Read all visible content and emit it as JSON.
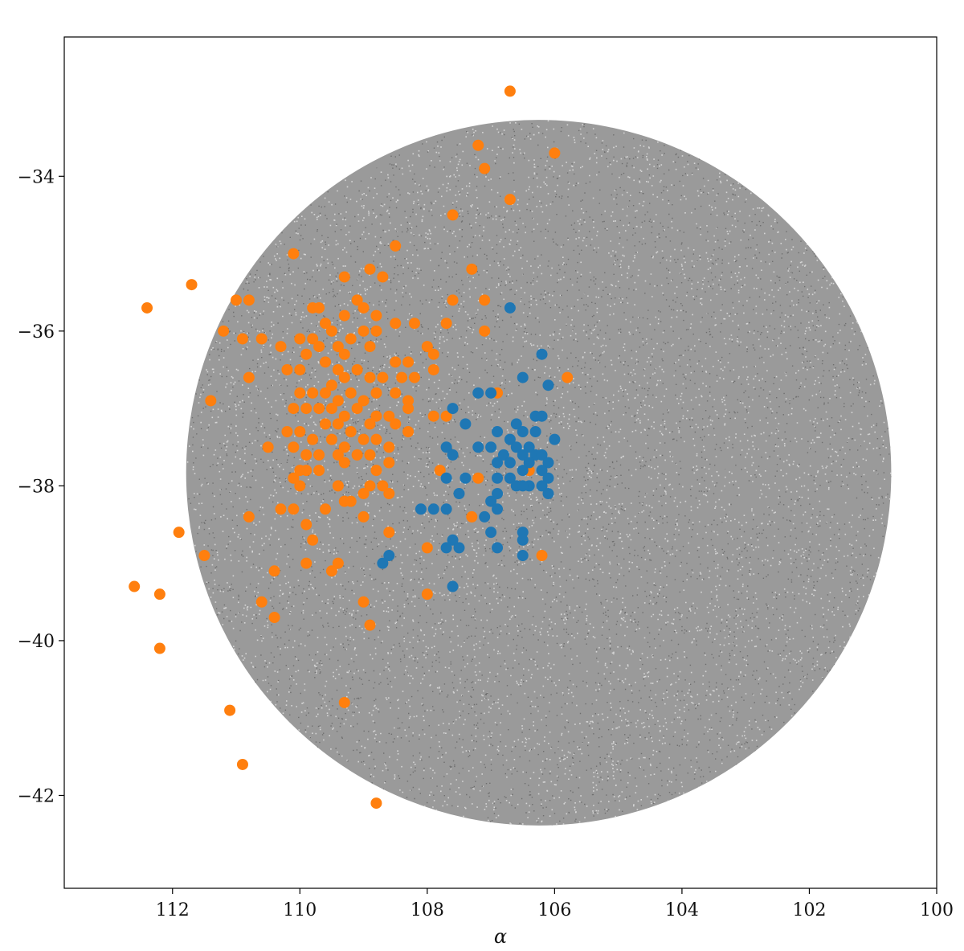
{
  "chart_data": {
    "type": "scatter",
    "title": "",
    "xlabel": "α",
    "ylabel": "",
    "xlim": [
      113.7,
      100.0
    ],
    "ylim": [
      -43.2,
      -32.2
    ],
    "x_inverted": true,
    "xticks": [
      112,
      110,
      108,
      106,
      104,
      102,
      100
    ],
    "yticks": [
      -34,
      -36,
      -38,
      -40,
      -42
    ],
    "xtick_labels": [
      "112",
      "110",
      "108",
      "106",
      "104",
      "102",
      "100"
    ],
    "ytick_labels": [
      "−34",
      "−36",
      "−38",
      "−40",
      "−42"
    ],
    "grid": false,
    "legend": "none",
    "colors": {
      "background_field": "#808080",
      "group_a": "#ff7f0e",
      "group_b": "#1f77b4"
    },
    "background_field": {
      "shape": "circular field of dense faint points",
      "center": [
        106.25,
        -37.83
      ],
      "radius_deg": 5.0
    },
    "series": [
      {
        "name": "",
        "color": "#ff7f0e",
        "points": [
          [
            106.7,
            -32.9
          ],
          [
            107.2,
            -33.6
          ],
          [
            106.0,
            -33.7
          ],
          [
            107.1,
            -33.9
          ],
          [
            106.7,
            -34.3
          ],
          [
            107.6,
            -34.5
          ],
          [
            108.5,
            -34.9
          ],
          [
            110.1,
            -35.0
          ],
          [
            107.3,
            -35.2
          ],
          [
            109.3,
            -35.3
          ],
          [
            108.9,
            -35.2
          ],
          [
            108.7,
            -35.3
          ],
          [
            111.7,
            -35.4
          ],
          [
            112.4,
            -35.7
          ],
          [
            111.0,
            -35.6
          ],
          [
            110.8,
            -35.6
          ],
          [
            107.6,
            -35.6
          ],
          [
            107.1,
            -35.6
          ],
          [
            109.8,
            -35.7
          ],
          [
            109.7,
            -35.7
          ],
          [
            109.1,
            -35.6
          ],
          [
            109.0,
            -35.7
          ],
          [
            108.8,
            -35.8
          ],
          [
            108.5,
            -35.9
          ],
          [
            108.2,
            -35.9
          ],
          [
            107.7,
            -35.9
          ],
          [
            109.6,
            -35.9
          ],
          [
            109.3,
            -35.8
          ],
          [
            111.2,
            -36.0
          ],
          [
            110.9,
            -36.1
          ],
          [
            110.6,
            -36.1
          ],
          [
            110.0,
            -36.1
          ],
          [
            109.8,
            -36.1
          ],
          [
            109.5,
            -36.0
          ],
          [
            109.2,
            -36.1
          ],
          [
            109.0,
            -36.0
          ],
          [
            108.8,
            -36.0
          ],
          [
            110.3,
            -36.2
          ],
          [
            109.7,
            -36.2
          ],
          [
            109.4,
            -36.2
          ],
          [
            109.3,
            -36.3
          ],
          [
            108.9,
            -36.2
          ],
          [
            108.0,
            -36.2
          ],
          [
            107.9,
            -36.3
          ],
          [
            107.1,
            -36.0
          ],
          [
            109.9,
            -36.3
          ],
          [
            109.6,
            -36.4
          ],
          [
            108.5,
            -36.4
          ],
          [
            108.3,
            -36.4
          ],
          [
            110.2,
            -36.5
          ],
          [
            110.0,
            -36.5
          ],
          [
            109.4,
            -36.5
          ],
          [
            109.1,
            -36.5
          ],
          [
            108.9,
            -36.6
          ],
          [
            108.7,
            -36.6
          ],
          [
            108.4,
            -36.6
          ],
          [
            108.2,
            -36.6
          ],
          [
            107.9,
            -36.5
          ],
          [
            110.8,
            -36.6
          ],
          [
            109.5,
            -36.7
          ],
          [
            109.3,
            -36.6
          ],
          [
            105.8,
            -36.6
          ],
          [
            110.0,
            -36.8
          ],
          [
            109.8,
            -36.8
          ],
          [
            109.6,
            -36.8
          ],
          [
            109.4,
            -36.9
          ],
          [
            109.2,
            -36.8
          ],
          [
            109.0,
            -36.9
          ],
          [
            108.8,
            -36.8
          ],
          [
            108.5,
            -36.8
          ],
          [
            108.3,
            -36.9
          ],
          [
            106.9,
            -36.8
          ],
          [
            111.4,
            -36.9
          ],
          [
            110.1,
            -37.0
          ],
          [
            109.9,
            -37.0
          ],
          [
            109.7,
            -37.0
          ],
          [
            109.5,
            -37.0
          ],
          [
            109.3,
            -37.1
          ],
          [
            109.1,
            -37.0
          ],
          [
            108.8,
            -37.1
          ],
          [
            108.6,
            -37.1
          ],
          [
            108.3,
            -37.0
          ],
          [
            107.9,
            -37.1
          ],
          [
            107.7,
            -37.1
          ],
          [
            109.6,
            -37.2
          ],
          [
            109.4,
            -37.2
          ],
          [
            109.2,
            -37.3
          ],
          [
            108.9,
            -37.2
          ],
          [
            108.5,
            -37.2
          ],
          [
            108.3,
            -37.3
          ],
          [
            110.2,
            -37.3
          ],
          [
            110.0,
            -37.3
          ],
          [
            109.8,
            -37.4
          ],
          [
            109.5,
            -37.4
          ],
          [
            109.3,
            -37.5
          ],
          [
            109.0,
            -37.4
          ],
          [
            108.8,
            -37.4
          ],
          [
            108.6,
            -37.5
          ],
          [
            110.5,
            -37.5
          ],
          [
            110.1,
            -37.5
          ],
          [
            109.9,
            -37.6
          ],
          [
            109.7,
            -37.6
          ],
          [
            109.4,
            -37.6
          ],
          [
            109.1,
            -37.6
          ],
          [
            108.9,
            -37.6
          ],
          [
            108.6,
            -37.7
          ],
          [
            110.0,
            -37.8
          ],
          [
            109.7,
            -37.8
          ],
          [
            109.3,
            -37.7
          ],
          [
            108.8,
            -37.8
          ],
          [
            107.8,
            -37.8
          ],
          [
            106.4,
            -37.8
          ],
          [
            110.1,
            -37.9
          ],
          [
            109.9,
            -37.8
          ],
          [
            109.4,
            -38.0
          ],
          [
            108.9,
            -38.0
          ],
          [
            108.7,
            -38.0
          ],
          [
            107.2,
            -37.9
          ],
          [
            110.0,
            -38.0
          ],
          [
            109.0,
            -38.1
          ],
          [
            108.6,
            -38.1
          ],
          [
            109.3,
            -38.2
          ],
          [
            109.2,
            -38.2
          ],
          [
            110.3,
            -38.3
          ],
          [
            110.1,
            -38.3
          ],
          [
            109.6,
            -38.3
          ],
          [
            110.8,
            -38.4
          ],
          [
            109.0,
            -38.4
          ],
          [
            107.3,
            -38.4
          ],
          [
            109.9,
            -38.5
          ],
          [
            111.9,
            -38.6
          ],
          [
            108.6,
            -38.6
          ],
          [
            109.8,
            -38.7
          ],
          [
            111.5,
            -38.9
          ],
          [
            108.0,
            -38.8
          ],
          [
            109.9,
            -39.0
          ],
          [
            109.4,
            -39.0
          ],
          [
            109.5,
            -39.1
          ],
          [
            106.2,
            -38.9
          ],
          [
            112.6,
            -39.3
          ],
          [
            112.2,
            -39.4
          ],
          [
            110.4,
            -39.1
          ],
          [
            108.0,
            -39.4
          ],
          [
            109.0,
            -39.5
          ],
          [
            110.6,
            -39.5
          ],
          [
            110.4,
            -39.7
          ],
          [
            108.9,
            -39.8
          ],
          [
            112.2,
            -40.1
          ],
          [
            109.3,
            -40.8
          ],
          [
            111.1,
            -40.9
          ],
          [
            110.9,
            -41.6
          ],
          [
            108.8,
            -42.1
          ]
        ]
      },
      {
        "name": "",
        "color": "#1f77b4",
        "points": [
          [
            106.7,
            -35.7
          ],
          [
            106.2,
            -36.3
          ],
          [
            106.5,
            -36.6
          ],
          [
            106.1,
            -36.7
          ],
          [
            107.0,
            -36.8
          ],
          [
            107.2,
            -36.8
          ],
          [
            107.6,
            -37.0
          ],
          [
            107.4,
            -37.2
          ],
          [
            106.3,
            -37.1
          ],
          [
            106.2,
            -37.1
          ],
          [
            106.9,
            -37.3
          ],
          [
            106.6,
            -37.2
          ],
          [
            106.5,
            -37.3
          ],
          [
            106.3,
            -37.3
          ],
          [
            106.7,
            -37.4
          ],
          [
            106.4,
            -37.5
          ],
          [
            106.0,
            -37.4
          ],
          [
            107.0,
            -37.5
          ],
          [
            106.8,
            -37.6
          ],
          [
            106.6,
            -37.5
          ],
          [
            106.5,
            -37.6
          ],
          [
            106.3,
            -37.6
          ],
          [
            106.2,
            -37.6
          ],
          [
            107.7,
            -37.5
          ],
          [
            107.2,
            -37.5
          ],
          [
            106.9,
            -37.7
          ],
          [
            106.7,
            -37.7
          ],
          [
            106.5,
            -37.8
          ],
          [
            106.4,
            -37.7
          ],
          [
            106.1,
            -37.7
          ],
          [
            107.6,
            -37.6
          ],
          [
            106.9,
            -37.9
          ],
          [
            106.7,
            -37.9
          ],
          [
            106.6,
            -38.0
          ],
          [
            106.4,
            -38.0
          ],
          [
            106.2,
            -37.8
          ],
          [
            106.1,
            -37.9
          ],
          [
            107.7,
            -37.9
          ],
          [
            107.4,
            -37.9
          ],
          [
            106.9,
            -38.1
          ],
          [
            106.5,
            -38.0
          ],
          [
            106.2,
            -38.0
          ],
          [
            106.1,
            -38.1
          ],
          [
            107.5,
            -38.1
          ],
          [
            107.0,
            -38.2
          ],
          [
            106.9,
            -38.3
          ],
          [
            108.1,
            -38.3
          ],
          [
            107.9,
            -38.3
          ],
          [
            107.7,
            -38.3
          ],
          [
            107.1,
            -38.4
          ],
          [
            107.0,
            -38.6
          ],
          [
            106.9,
            -38.8
          ],
          [
            106.5,
            -38.6
          ],
          [
            106.5,
            -38.7
          ],
          [
            107.6,
            -38.7
          ],
          [
            107.7,
            -38.8
          ],
          [
            107.5,
            -38.8
          ],
          [
            106.5,
            -38.9
          ],
          [
            108.6,
            -38.9
          ],
          [
            108.7,
            -39.0
          ],
          [
            107.6,
            -39.3
          ]
        ]
      }
    ]
  }
}
